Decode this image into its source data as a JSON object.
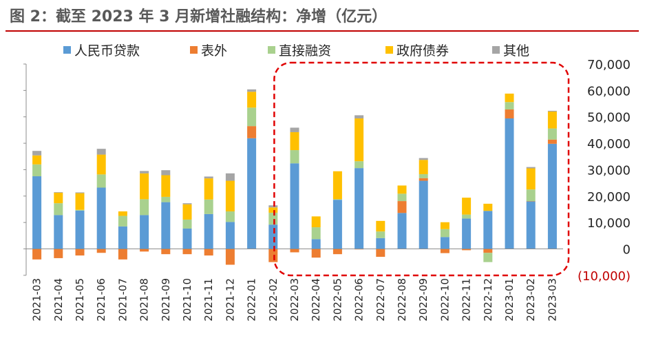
{
  "title": "图 2：截至 2023 年 3 月新增社融结构：净增（亿元）",
  "colors": {
    "rmb_loans": "#5b9bd5",
    "off_balance": "#ed7d31",
    "direct_financing": "#a9d18e",
    "gov_bonds": "#ffc000",
    "others": "#a5a5a5",
    "highlight": "#e00000"
  },
  "chart_data": {
    "type": "bar",
    "stacked": true,
    "categories": [
      "2021-03",
      "2021-04",
      "2021-05",
      "2021-06",
      "2021-07",
      "2021-08",
      "2021-09",
      "2021-10",
      "2021-11",
      "2021-12",
      "2022-01",
      "2022-02",
      "2022-03",
      "2022-04",
      "2022-05",
      "2022-06",
      "2022-07",
      "2022-08",
      "2022-09",
      "2022-10",
      "2022-11",
      "2022-12",
      "2023-01",
      "2023-02",
      "2023-03"
    ],
    "series": [
      {
        "name": "人民币贷款",
        "key": "rmb_loans",
        "values": [
          27500,
          12800,
          14500,
          23200,
          8500,
          12800,
          17700,
          7700,
          13200,
          10200,
          41900,
          9200,
          32400,
          3700,
          18600,
          30600,
          4100,
          13600,
          25800,
          4500,
          11500,
          14400,
          49400,
          18000,
          39800
        ]
      },
      {
        "name": "表外",
        "key": "off_balance",
        "values": [
          -4000,
          -3500,
          -2500,
          -1500,
          -4000,
          -1000,
          -2000,
          -2000,
          -2500,
          -6000,
          4600,
          -5000,
          -1300,
          -3300,
          -2000,
          -200,
          -3000,
          4500,
          1000,
          -1600,
          -500,
          -1500,
          3400,
          100,
          1600
        ]
      },
      {
        "name": "直接融资",
        "key": "direct_financing",
        "values": [
          4500,
          4500,
          300,
          5000,
          4000,
          6000,
          2000,
          3400,
          5500,
          4000,
          7000,
          4500,
          5000,
          4500,
          200,
          2600,
          2500,
          2800,
          1500,
          3000,
          1500,
          -3500,
          2800,
          4400,
          4200
        ]
      },
      {
        "name": "政府债券",
        "key": "gov_bonds",
        "values": [
          3400,
          4000,
          6300,
          7500,
          1700,
          9800,
          8200,
          5800,
          8000,
          11600,
          6000,
          2000,
          6800,
          4100,
          10600,
          16200,
          4000,
          3100,
          5400,
          2600,
          6400,
          2700,
          3200,
          8000,
          6400
        ]
      },
      {
        "name": "其他",
        "key": "others",
        "values": [
          1700,
          200,
          300,
          2200,
          0,
          900,
          1900,
          400,
          700,
          2800,
          900,
          800,
          1700,
          0,
          0,
          1200,
          0,
          0,
          700,
          0,
          0,
          0,
          0,
          500,
          300
        ]
      }
    ],
    "ylim": [
      -10000,
      70000
    ],
    "yticks": [
      -10000,
      0,
      10000,
      20000,
      30000,
      40000,
      50000,
      60000,
      70000
    ],
    "ytick_labels": [
      "(10,000)",
      "0",
      "10,000",
      "20,000",
      "30,000",
      "40,000",
      "50,000",
      "60,000",
      "70,000"
    ],
    "y_axis_side": "right",
    "legend_position": "top",
    "grid": false,
    "highlight_range": [
      "2022-03",
      "2023-03"
    ]
  }
}
